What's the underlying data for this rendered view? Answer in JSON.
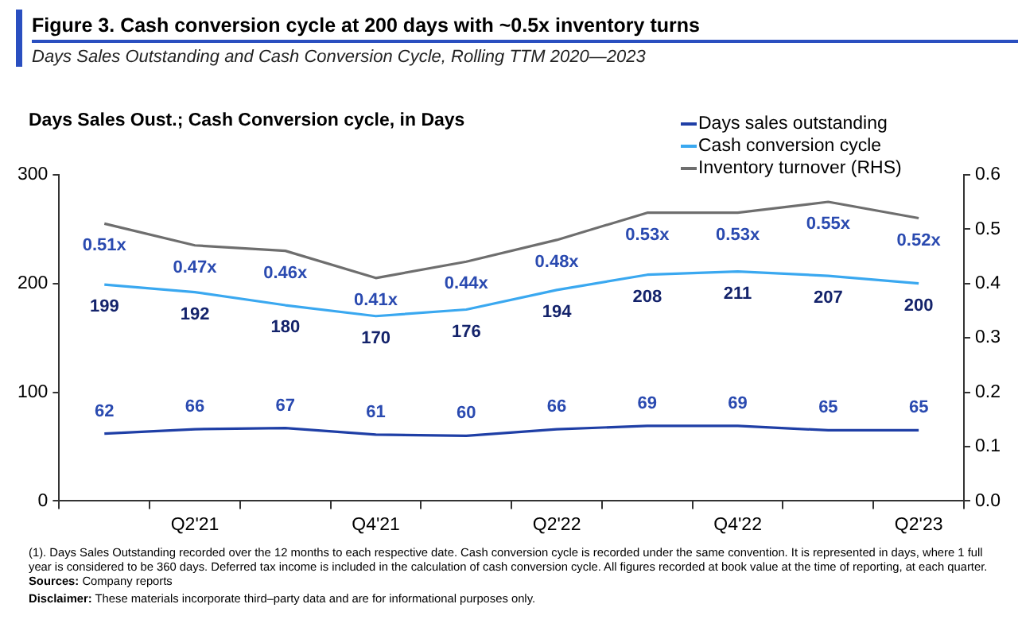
{
  "chart_data": {
    "type": "line",
    "title": "Figure 3. Cash conversion cycle at 200 days with  ~0.5x inventory turns",
    "subtitle": "Days Sales Outstanding and Cash Conversion Cycle, Rolling TTM 2020—2023",
    "ylabel": "Days Sales Oust.; Cash Conversion cycle, in Days",
    "categories": [
      null,
      "Q2'21",
      null,
      "Q4'21",
      null,
      "Q2'22",
      null,
      "Q4'22",
      null,
      "Q2'23"
    ],
    "series": [
      {
        "name": "Days sales outstanding",
        "color": "#1f3fa6",
        "values": [
          62,
          66,
          67,
          61,
          60,
          66,
          69,
          69,
          65,
          65
        ],
        "value_labels": [
          "62",
          "66",
          "67",
          "61",
          "60",
          "66",
          "69",
          "69",
          "65",
          "65"
        ]
      },
      {
        "name": "Cash conversion cycle",
        "color": "#3aa8f0",
        "values": [
          199,
          192,
          180,
          170,
          176,
          194,
          208,
          211,
          207,
          200
        ],
        "value_labels": [
          "199",
          "192",
          "180",
          "170",
          "176",
          "194",
          "208",
          "211",
          "207",
          "200"
        ]
      },
      {
        "name": "Inventory turnover (RHS)",
        "color": "#6e6e6e",
        "axis": "y2",
        "values": [
          0.51,
          0.47,
          0.46,
          0.41,
          0.44,
          0.48,
          0.53,
          0.53,
          0.55,
          0.52
        ],
        "value_labels": [
          "0.51x",
          "0.47x",
          "0.46x",
          "0.41x",
          "0.44x",
          "0.48x",
          "0.53x",
          "0.53x",
          "0.55x",
          "0.52x"
        ]
      }
    ],
    "ylim": [
      0,
      300
    ],
    "yticks": [
      0,
      100,
      200,
      300
    ],
    "y2lim": [
      0,
      0.6
    ],
    "y2ticks": [
      {
        "value": 0,
        "label": "0.0"
      },
      {
        "value": 0.1,
        "label": "0.1"
      },
      {
        "value": 0.2,
        "label": "0.2"
      },
      {
        "value": 0.3,
        "label": "0.3"
      },
      {
        "value": 0.4,
        "label": "0.4"
      },
      {
        "value": 0.5,
        "label": "0.5"
      },
      {
        "value": 0.6,
        "label": "0.6"
      }
    ],
    "grid": false,
    "legend": "top right",
    "marker": "none",
    "line_style": "solid",
    "annotations": [
      "(1). Days Sales Outstanding recorded over the 12 months to each respective date. Cash conversion cycle is recorded under the same convention. It is represented in days, where 1 full year is considered to be 360 days. Deferred tax income is included in the calculation of cash conversion cycle. All figures recorded at book value at the time of reporting, at each quarter.",
      "Sources: Company reports",
      "Disclaimer: These materials incorporate third–party data and are for informational purposes only."
    ]
  }
}
